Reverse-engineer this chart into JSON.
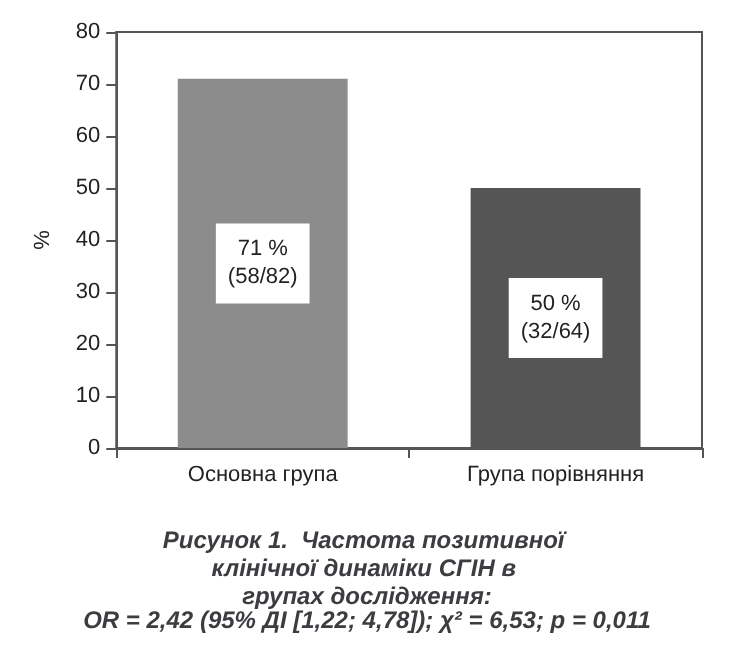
{
  "chart_data": {
    "type": "bar",
    "title": "Рисунок 1.  Частота позитивної клінічної динаміки СГІН в групах дослідження:",
    "subtitle": "OR = 2,42 (95% ДІ [1,22; 4,78]); χ² = 6,53; p = 0,011",
    "ylabel": "%",
    "categories": [
      "Основна група",
      "Група порівняння"
    ],
    "values": [
      71,
      50
    ],
    "colors": [
      "#8c8c8c",
      "#555555"
    ],
    "value_labels": [
      "71 %\n(58/82)",
      "50 %\n(32/64)"
    ],
    "ylim": [
      0,
      80
    ],
    "yticks": [
      0,
      10,
      20,
      30,
      40,
      50,
      60,
      70,
      80
    ],
    "grid": false
  }
}
